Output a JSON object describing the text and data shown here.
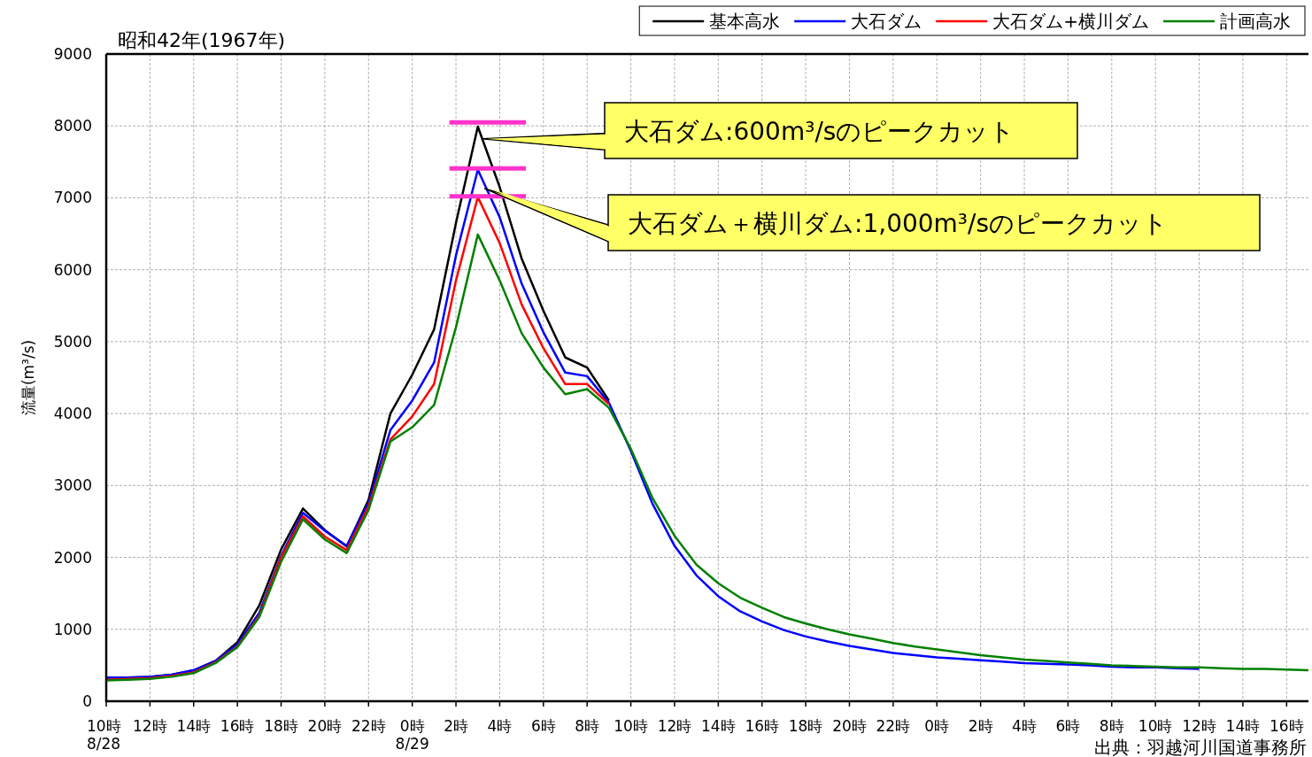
{
  "chart_data": {
    "type": "line",
    "title": "昭和42年(1967年)",
    "ylabel": "流量(m³/s)",
    "xlim": [
      "1967-08-28T10:00",
      "1967-08-30T17:00"
    ],
    "ylim": [
      0,
      9000
    ],
    "xticks": [
      {
        "value": "1967-08-28T10:00",
        "label": "10時\n8/28"
      },
      {
        "value": "1967-08-28T12:00",
        "label": "12時"
      },
      {
        "value": "1967-08-28T14:00",
        "label": "14時"
      },
      {
        "value": "1967-08-28T16:00",
        "label": "16時"
      },
      {
        "value": "1967-08-28T18:00",
        "label": "18時"
      },
      {
        "value": "1967-08-28T20:00",
        "label": "20時"
      },
      {
        "value": "1967-08-28T22:00",
        "label": "22時"
      },
      {
        "value": "1967-08-29T00:00",
        "label": "0時\n8/29"
      },
      {
        "value": "1967-08-29T02:00",
        "label": "2時"
      },
      {
        "value": "1967-08-29T04:00",
        "label": "4時"
      },
      {
        "value": "1967-08-29T06:00",
        "label": "6時"
      },
      {
        "value": "1967-08-29T08:00",
        "label": "8時"
      },
      {
        "value": "1967-08-29T10:00",
        "label": "10時"
      },
      {
        "value": "1967-08-29T12:00",
        "label": "12時"
      },
      {
        "value": "1967-08-29T14:00",
        "label": "14時"
      },
      {
        "value": "1967-08-29T16:00",
        "label": "16時"
      },
      {
        "value": "1967-08-29T18:00",
        "label": "18時"
      },
      {
        "value": "1967-08-29T20:00",
        "label": "20時"
      },
      {
        "value": "1967-08-29T22:00",
        "label": "22時"
      },
      {
        "value": "1967-08-30T00:00",
        "label": "0時"
      },
      {
        "value": "1967-08-30T02:00",
        "label": "2時"
      },
      {
        "value": "1967-08-30T04:00",
        "label": "4時"
      },
      {
        "value": "1967-08-30T06:00",
        "label": "6時"
      },
      {
        "value": "1967-08-30T08:00",
        "label": "8時"
      },
      {
        "value": "1967-08-30T10:00",
        "label": "10時"
      },
      {
        "value": "1967-08-30T12:00",
        "label": "12時"
      },
      {
        "value": "1967-08-30T14:00",
        "label": "14時"
      },
      {
        "value": "1967-08-30T16:00",
        "label": "16時"
      }
    ],
    "yticks": [
      0,
      1000,
      2000,
      3000,
      4000,
      5000,
      6000,
      7000,
      8000,
      9000
    ],
    "grid": true,
    "legend": "top right",
    "marker": "none",
    "line_style": "solid",
    "x": [
      "1967-08-28T10:00",
      "1967-08-28T11:00",
      "1967-08-28T12:00",
      "1967-08-28T13:00",
      "1967-08-28T14:00",
      "1967-08-28T15:00",
      "1967-08-28T16:00",
      "1967-08-28T17:00",
      "1967-08-28T18:00",
      "1967-08-28T19:00",
      "1967-08-28T20:00",
      "1967-08-28T21:00",
      "1967-08-28T22:00",
      "1967-08-28T23:00",
      "1967-08-29T00:00",
      "1967-08-29T01:00",
      "1967-08-29T02:00",
      "1967-08-29T03:00",
      "1967-08-29T04:00",
      "1967-08-29T05:00",
      "1967-08-29T06:00",
      "1967-08-29T07:00",
      "1967-08-29T08:00",
      "1967-08-29T09:00",
      "1967-08-29T10:00",
      "1967-08-29T11:00",
      "1967-08-29T12:00",
      "1967-08-29T13:00",
      "1967-08-29T14:00",
      "1967-08-29T15:00",
      "1967-08-29T16:00",
      "1967-08-29T17:00",
      "1967-08-29T18:00",
      "1967-08-29T19:00",
      "1967-08-29T20:00",
      "1967-08-29T21:00",
      "1967-08-29T22:00",
      "1967-08-29T23:00",
      "1967-08-30T00:00",
      "1967-08-30T01:00",
      "1967-08-30T02:00",
      "1967-08-30T03:00",
      "1967-08-30T04:00",
      "1967-08-30T05:00",
      "1967-08-30T06:00",
      "1967-08-30T07:00",
      "1967-08-30T08:00",
      "1967-08-30T09:00",
      "1967-08-30T10:00",
      "1967-08-30T11:00",
      "1967-08-30T12:00",
      "1967-08-30T13:00",
      "1967-08-30T14:00",
      "1967-08-30T15:00",
      "1967-08-30T16:00",
      "1967-08-30T17:00"
    ],
    "series": [
      {
        "name": "基本高水",
        "color": "#000000",
        "values": [
          330,
          330,
          340,
          370,
          430,
          560,
          820,
          1330,
          2110,
          2680,
          2380,
          2150,
          2800,
          4000,
          4540,
          5170,
          6650,
          7990,
          7150,
          6160,
          5430,
          4780,
          4640,
          4180,
          null,
          null,
          null,
          null,
          null,
          null,
          null,
          null,
          null,
          null,
          null,
          null,
          null,
          null,
          null,
          null,
          null,
          null,
          null,
          null,
          null,
          null,
          null,
          null,
          null,
          null,
          null,
          null,
          null,
          null,
          null,
          null
        ]
      },
      {
        "name": "大石ダム",
        "color": "#0000ff",
        "values": [
          330,
          330,
          340,
          370,
          430,
          560,
          790,
          1230,
          2020,
          2620,
          2370,
          2160,
          2760,
          3770,
          4180,
          4710,
          6200,
          7390,
          6730,
          5810,
          5130,
          4570,
          4520,
          4150,
          3480,
          2740,
          2160,
          1750,
          1460,
          1250,
          1110,
          990,
          900,
          830,
          770,
          720,
          670,
          640,
          610,
          590,
          570,
          550,
          530,
          520,
          510,
          500,
          480,
          470,
          470,
          460,
          450,
          null,
          null,
          null,
          null,
          null
        ]
      },
      {
        "name": "大石ダム+横川ダム",
        "color": "#ff0000",
        "values": [
          300,
          310,
          320,
          350,
          400,
          540,
          760,
          1190,
          2000,
          2570,
          2290,
          2100,
          2710,
          3640,
          3960,
          4410,
          5850,
          7010,
          6370,
          5520,
          4910,
          4410,
          4410,
          4130,
          null,
          null,
          null,
          null,
          null,
          null,
          null,
          null,
          null,
          null,
          null,
          null,
          null,
          null,
          null,
          null,
          null,
          null,
          null,
          null,
          null,
          null,
          null,
          null,
          null,
          null,
          null,
          null,
          null,
          null,
          null,
          null
        ]
      },
      {
        "name": "計画高水",
        "color": "#008000",
        "values": [
          290,
          300,
          310,
          340,
          390,
          530,
          750,
          1170,
          1940,
          2530,
          2250,
          2060,
          2660,
          3610,
          3810,
          4120,
          5200,
          6490,
          5850,
          5120,
          4640,
          4270,
          4340,
          4080,
          3510,
          2820,
          2300,
          1900,
          1640,
          1440,
          1300,
          1170,
          1080,
          1000,
          930,
          870,
          810,
          760,
          720,
          680,
          640,
          610,
          580,
          560,
          540,
          520,
          500,
          490,
          480,
          470,
          470,
          460,
          450,
          450,
          440,
          430
        ]
      },
      {
        "color": "#ff33cc",
        "x": [
          "1967-08-29T01:42",
          "1967-08-29T05:12"
        ],
        "values": [
          8050,
          8050
        ]
      },
      {
        "color": "#ff33cc",
        "x": [
          "1967-08-29T01:42",
          "1967-08-29T05:12"
        ],
        "values": [
          7410,
          7410
        ]
      },
      {
        "color": "#ff33cc",
        "x": [
          "1967-08-29T01:42",
          "1967-08-29T05:12"
        ],
        "values": [
          7020,
          7020
        ]
      }
    ],
    "annotations": [
      {
        "text": "大石ダム:600m³/sのピークカット",
        "x": "1967-08-29T03:12",
        "y": 7820
      },
      {
        "text": "大石ダム＋横川ダム:1,000m³/sのピークカット",
        "x": "1967-08-29T03:18",
        "y": 7130
      },
      "出典：羽越河川国道事務所"
    ]
  }
}
